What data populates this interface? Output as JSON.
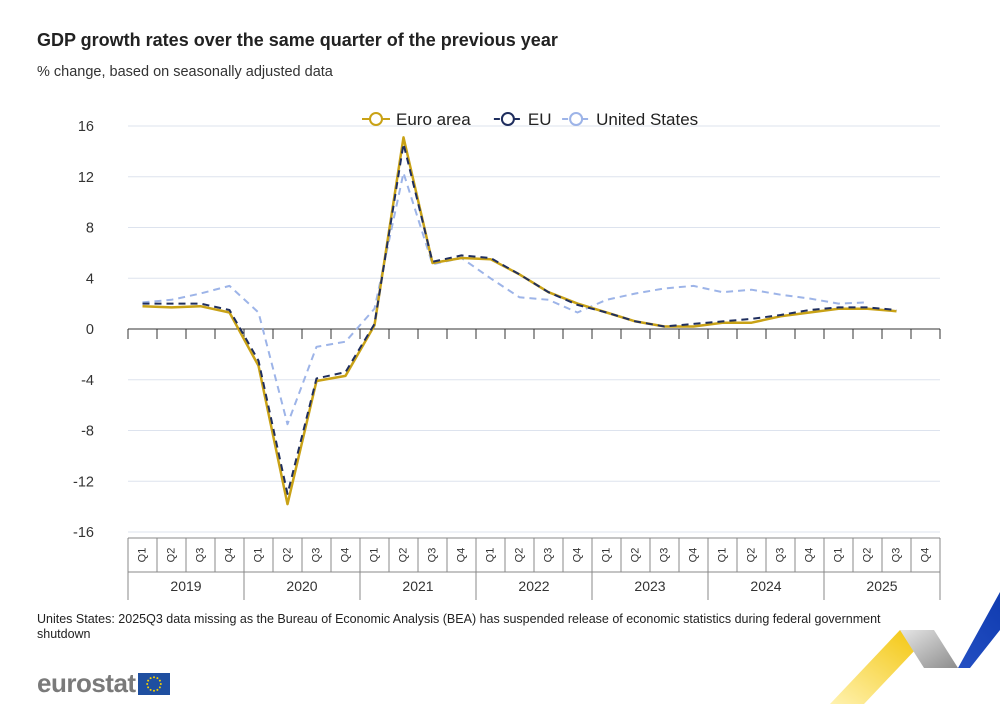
{
  "title": "GDP growth rates over the same quarter of the previous year",
  "subtitle": "% change, based on seasonally adjusted data",
  "note": "Unites States: 2025Q3 data missing as the Bureau of Economic Analysis (BEA) has suspended release of economic statistics during federal government shutdown",
  "logo": {
    "text": "eurostat"
  },
  "colors": {
    "euro_area": "#c9a216",
    "eu": "#1f2e5e",
    "us": "#9db4e8",
    "grid": "#dde3ee",
    "axis": "#333333"
  },
  "chart_data": {
    "type": "line",
    "title": "GDP growth rates over the same quarter of the previous year",
    "subtitle": "% change, based on seasonally adjusted data",
    "ylim": [
      -16,
      16
    ],
    "yticks": [
      16,
      12,
      8,
      4,
      0,
      -4,
      -8,
      -12,
      -16
    ],
    "ytick_labels": [
      "16",
      "12",
      "8",
      "4",
      "0",
      "-4",
      "-8",
      "-12",
      "-16"
    ],
    "quarters": [
      "Q1",
      "Q2",
      "Q3",
      "Q4",
      "Q1",
      "Q2",
      "Q3",
      "Q4",
      "Q1",
      "Q2",
      "Q3",
      "Q4",
      "Q1",
      "Q2",
      "Q3",
      "Q4",
      "Q1",
      "Q2",
      "Q3",
      "Q4",
      "Q1",
      "Q2",
      "Q3",
      "Q4",
      "Q1",
      "Q2",
      "Q3",
      "Q4"
    ],
    "years": [
      "2019",
      "2020",
      "2021",
      "2022",
      "2023",
      "2024",
      "2025"
    ],
    "legend_position": "top-center",
    "series": [
      {
        "name": "Euro area",
        "key": "euro_area",
        "style": "solid",
        "values": [
          1.8,
          1.7,
          1.8,
          1.3,
          -2.9,
          -13.8,
          -4.1,
          -3.7,
          0.3,
          15.1,
          5.2,
          5.6,
          5.5,
          4.3,
          2.9,
          2.0,
          1.3,
          0.6,
          0.2,
          0.2,
          0.5,
          0.5,
          1.0,
          1.3,
          1.6,
          1.6,
          1.4,
          null
        ]
      },
      {
        "name": "EU",
        "key": "eu",
        "style": "dashed",
        "values": [
          2.0,
          2.0,
          2.0,
          1.5,
          -2.5,
          -13.0,
          -3.9,
          -3.4,
          0.4,
          14.6,
          5.3,
          5.8,
          5.6,
          4.3,
          2.9,
          1.9,
          1.3,
          0.6,
          0.2,
          0.4,
          0.6,
          0.8,
          1.1,
          1.5,
          1.7,
          1.7,
          1.5,
          null
        ]
      },
      {
        "name": "United States",
        "key": "us",
        "style": "dashed",
        "values": [
          2.1,
          2.3,
          2.8,
          3.4,
          1.3,
          -7.5,
          -1.4,
          -1.0,
          1.6,
          12.3,
          5.1,
          5.6,
          4.0,
          2.5,
          2.3,
          1.3,
          2.3,
          2.8,
          3.2,
          3.4,
          2.9,
          3.1,
          2.7,
          2.4,
          2.0,
          2.1,
          null,
          null
        ]
      }
    ]
  }
}
